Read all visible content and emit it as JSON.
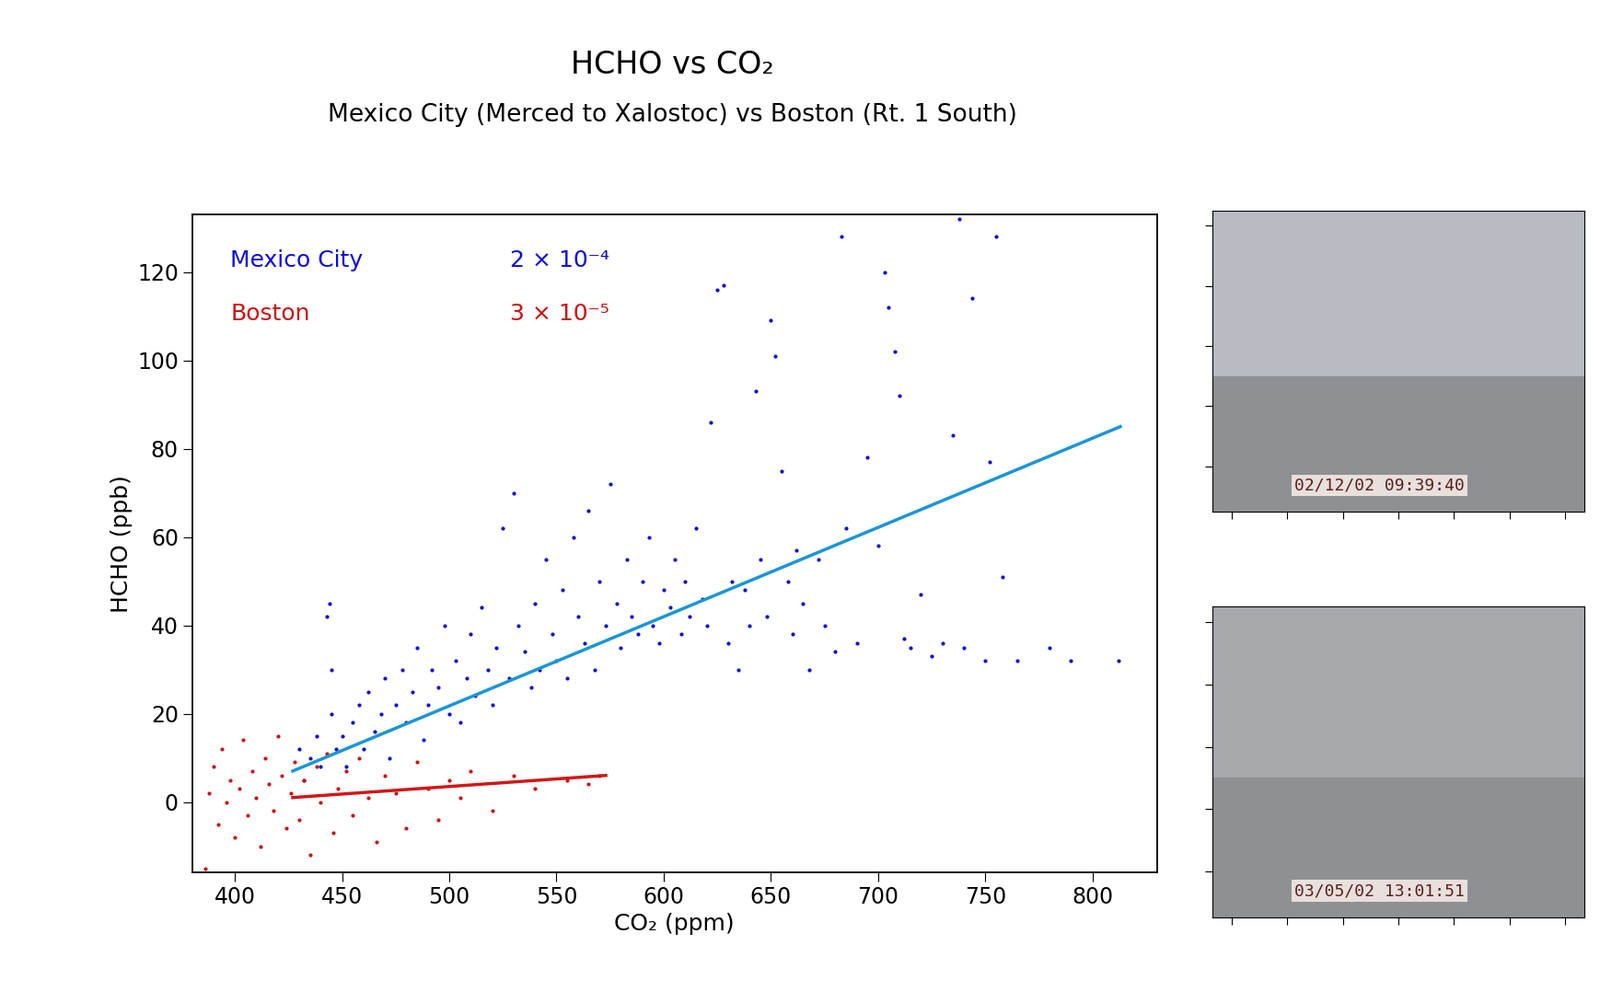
{
  "chart_data": {
    "type": "scatter",
    "title": "HCHO vs CO₂",
    "subtitle": "Mexico City (Merced to Xalostoc) vs Boston (Rt. 1 South)",
    "x_label": "CO₂ (ppm)",
    "y_label": "HCHO (ppb)",
    "xlim": [
      380,
      830
    ],
    "ylim": [
      -16,
      133
    ],
    "xticks": [
      400,
      450,
      500,
      550,
      600,
      650,
      700,
      750,
      800
    ],
    "yticks": [
      0,
      20,
      40,
      60,
      80,
      100,
      120
    ],
    "grid": false,
    "legend": "upper left",
    "marker": "dot",
    "series": [
      {
        "name": "Mexico City",
        "color": "#0a0adc",
        "annotation": "2 × 10⁻⁴",
        "x": [
          430,
          432,
          435,
          438,
          440,
          443,
          444,
          445,
          445,
          447,
          450,
          452,
          455,
          458,
          460,
          462,
          465,
          468,
          470,
          472,
          475,
          478,
          480,
          483,
          485,
          488,
          490,
          492,
          495,
          498,
          500,
          503,
          505,
          508,
          510,
          512,
          515,
          518,
          520,
          522,
          525,
          528,
          530,
          532,
          535,
          538,
          540,
          542,
          545,
          548,
          550,
          553,
          555,
          558,
          560,
          563,
          565,
          568,
          570,
          573,
          575,
          578,
          580,
          583,
          585,
          588,
          590,
          593,
          595,
          598,
          600,
          603,
          605,
          608,
          610,
          612,
          615,
          618,
          620,
          622,
          625,
          628,
          630,
          632,
          635,
          638,
          640,
          643,
          645,
          648,
          650,
          652,
          655,
          658,
          660,
          662,
          665,
          668,
          672,
          675,
          680,
          683,
          685,
          690,
          695,
          700,
          703,
          705,
          708,
          710,
          712,
          715,
          720,
          725,
          730,
          735,
          738,
          740,
          744,
          750,
          752,
          755,
          758,
          765,
          780,
          790,
          812
        ],
        "values": [
          12,
          5,
          10,
          15,
          8,
          42,
          45,
          30,
          20,
          12,
          15,
          8,
          18,
          22,
          12,
          25,
          16,
          20,
          28,
          10,
          22,
          30,
          18,
          25,
          35,
          14,
          22,
          30,
          26,
          40,
          20,
          32,
          18,
          28,
          38,
          24,
          44,
          30,
          22,
          35,
          62,
          28,
          70,
          40,
          34,
          26,
          45,
          30,
          55,
          38,
          32,
          48,
          28,
          60,
          42,
          36,
          66,
          30,
          50,
          40,
          72,
          45,
          35,
          55,
          42,
          38,
          50,
          60,
          40,
          36,
          48,
          44,
          55,
          38,
          50,
          42,
          62,
          46,
          40,
          86,
          116,
          117,
          36,
          50,
          30,
          48,
          40,
          93,
          55,
          42,
          109,
          101,
          75,
          50,
          38,
          57,
          45,
          30,
          55,
          40,
          34,
          128,
          62,
          36,
          78,
          58,
          120,
          112,
          102,
          92,
          37,
          35,
          47,
          33,
          36,
          83,
          132,
          35,
          114,
          32,
          77,
          128,
          51,
          32,
          35,
          32,
          32
        ],
        "fit": {
          "x": [
            427,
            813
          ],
          "values": [
            7,
            85
          ],
          "color": "#1a96d6"
        }
      },
      {
        "name": "Boston",
        "color": "#cc1010",
        "annotation": "3 × 10⁻⁵",
        "x": [
          386,
          388,
          390,
          392,
          394,
          396,
          398,
          400,
          402,
          404,
          406,
          408,
          410,
          412,
          414,
          416,
          418,
          420,
          422,
          424,
          426,
          428,
          430,
          432,
          435,
          438,
          440,
          443,
          446,
          448,
          452,
          455,
          458,
          462,
          466,
          470,
          475,
          480,
          485,
          490,
          495,
          500,
          505,
          510,
          520,
          530,
          540,
          555,
          565,
          570
        ],
        "values": [
          -15,
          2,
          8,
          -5,
          12,
          0,
          5,
          -8,
          3,
          14,
          -3,
          7,
          1,
          -10,
          10,
          4,
          -2,
          15,
          6,
          -6,
          2,
          9,
          -4,
          5,
          -12,
          8,
          0,
          11,
          -7,
          3,
          7,
          -3,
          10,
          1,
          -9,
          6,
          2,
          -6,
          9,
          3,
          -4,
          5,
          1,
          7,
          -2,
          6,
          3,
          5,
          4,
          6
        ],
        "fit": {
          "x": [
            427,
            573
          ],
          "values": [
            1,
            6
          ],
          "color": "#d01818"
        }
      }
    ],
    "images": [
      {
        "caption": "02/12/02 09:39:40"
      },
      {
        "caption": "03/05/02 13:01:51"
      }
    ]
  }
}
